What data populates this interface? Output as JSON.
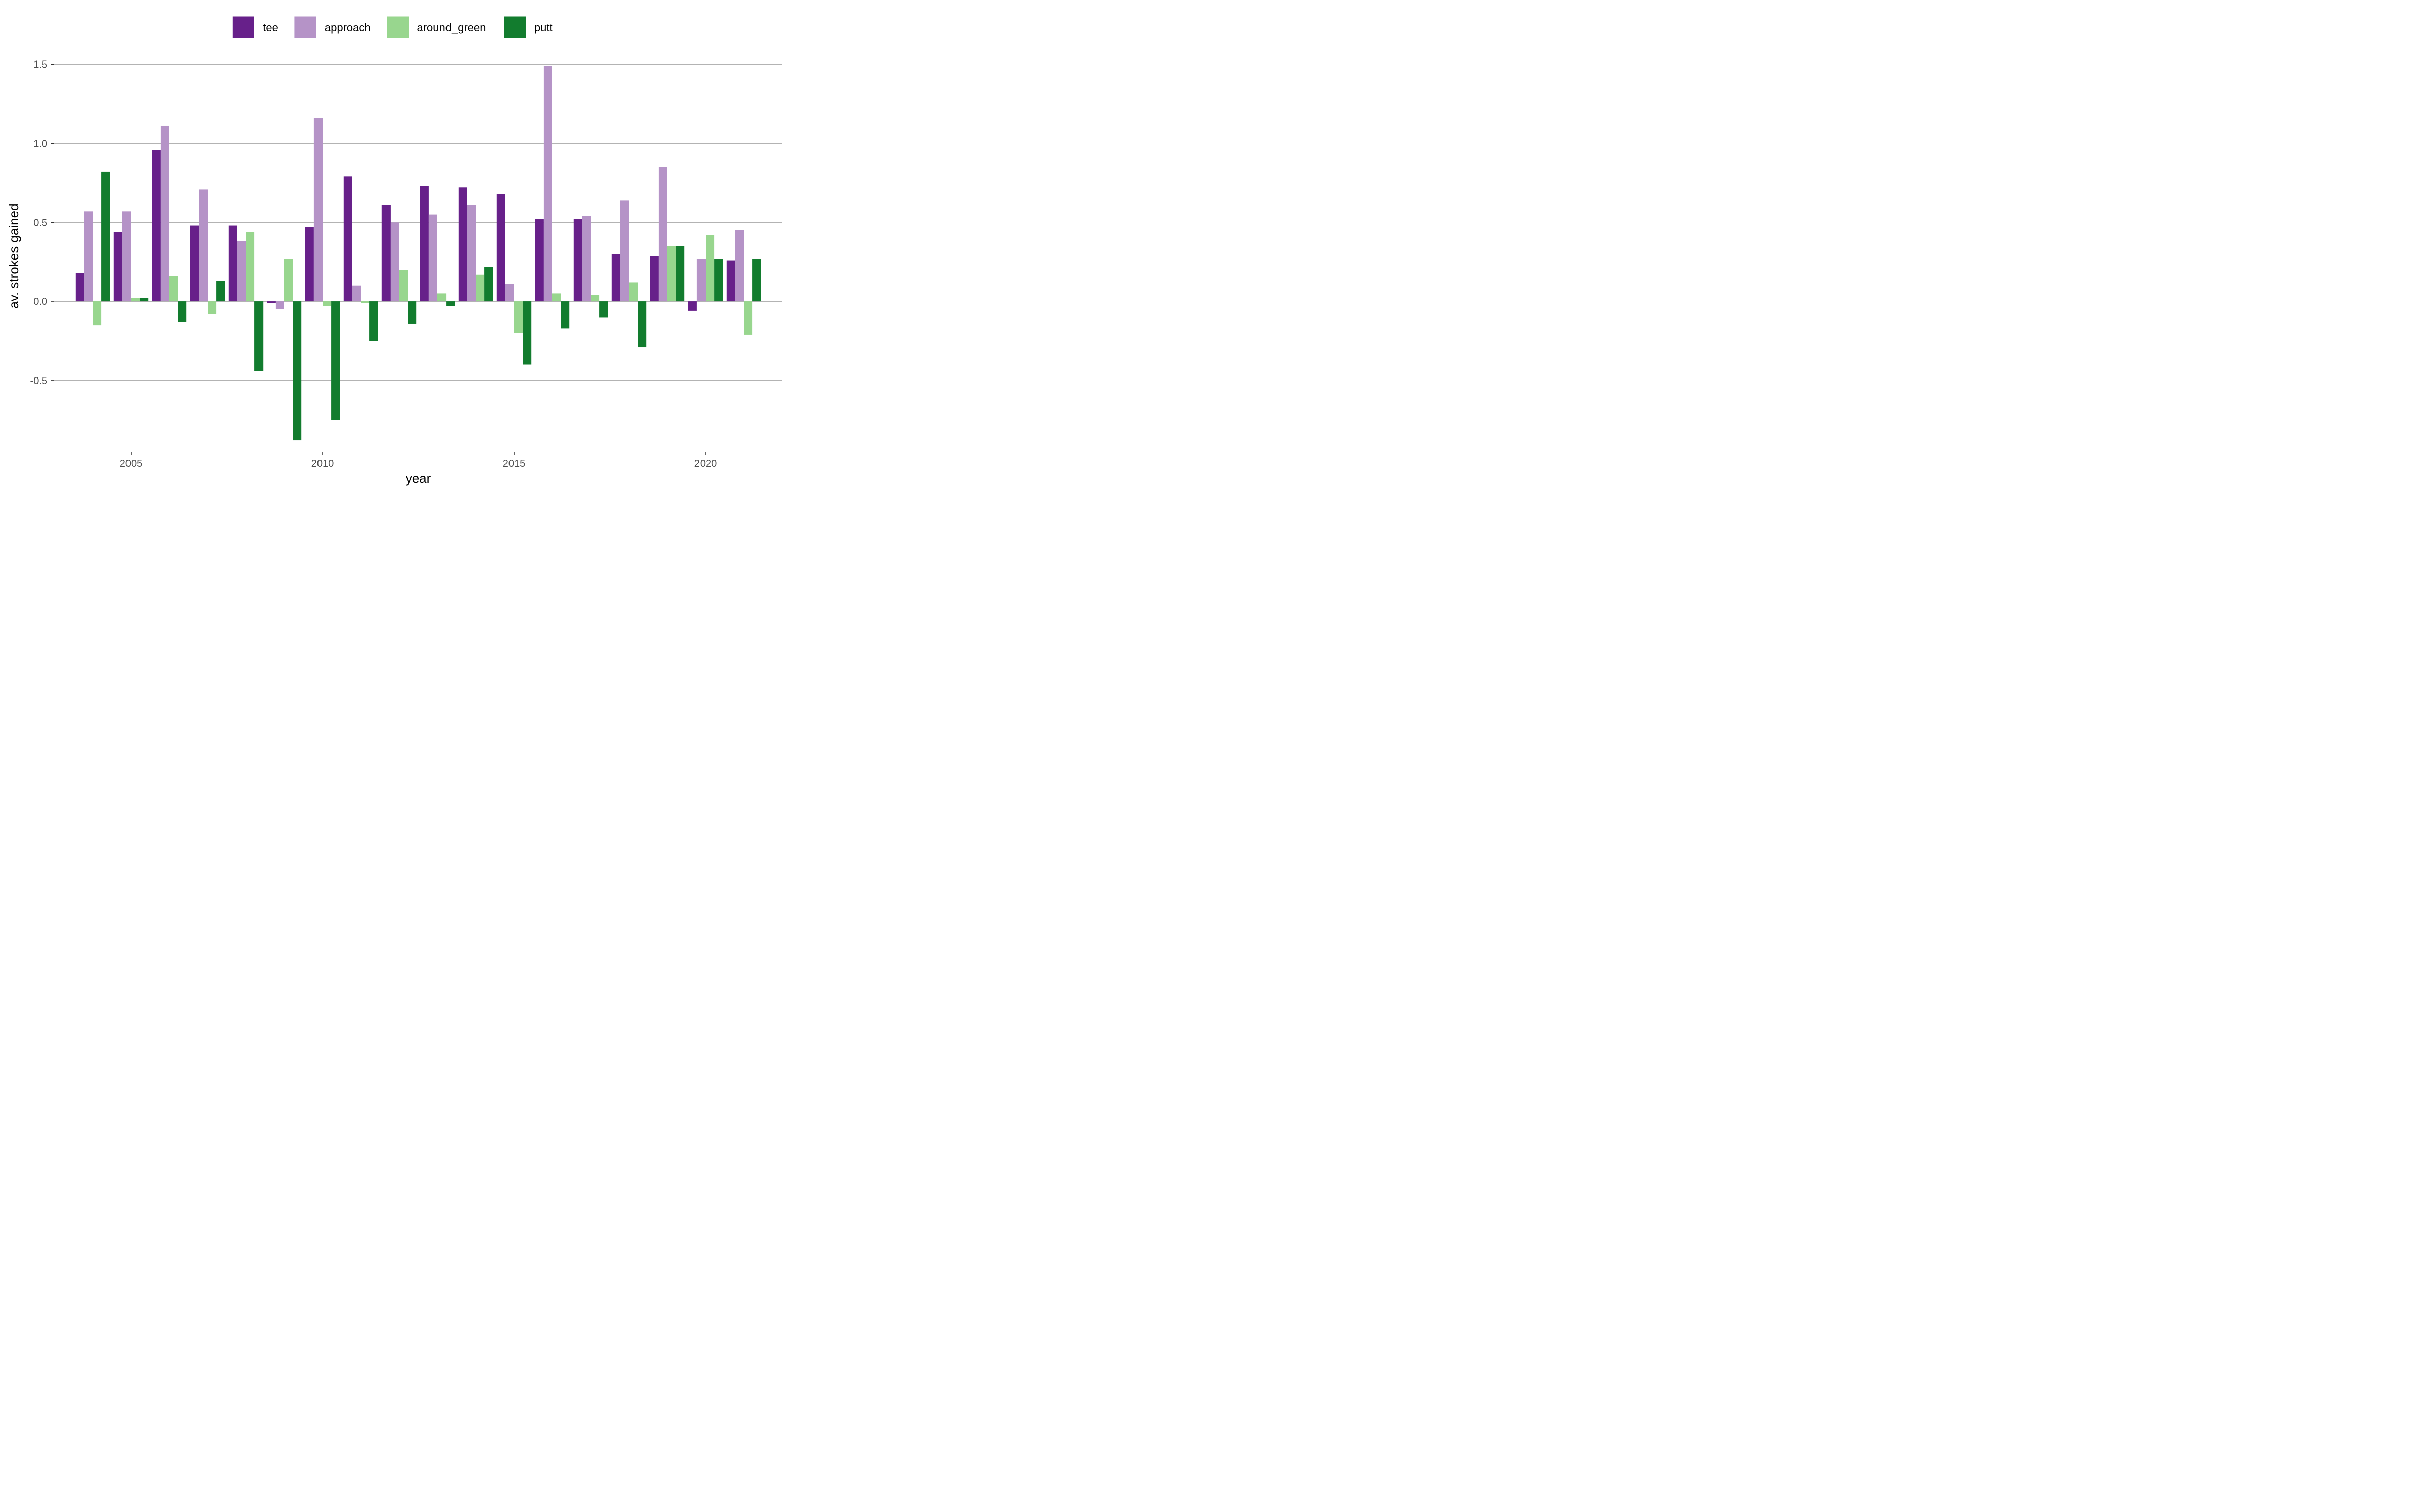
{
  "chart_data": {
    "type": "bar",
    "orientation": "vertical",
    "grouping": "dodged",
    "xlabel": "year",
    "ylabel": "av. strokes gained",
    "xlim": [
      2003,
      2022
    ],
    "ylim": [
      -0.95,
      1.55
    ],
    "x_ticks": [
      2005,
      2010,
      2015,
      2020
    ],
    "y_ticks": [
      -0.5,
      0.0,
      0.5,
      1.0,
      1.5
    ],
    "y_tick_labels": [
      "-0.5",
      "0.0",
      "0.5",
      "1.0",
      "1.5"
    ],
    "grid": {
      "major_y": true,
      "major_x": false
    },
    "legend": {
      "position": "top"
    },
    "x": [
      2004,
      2005,
      2006,
      2007,
      2008,
      2009,
      2010,
      2011,
      2012,
      2013,
      2014,
      2015,
      2016,
      2017,
      2018,
      2019,
      2020,
      2021
    ],
    "series": [
      {
        "name": "tee",
        "color": "#67208a",
        "values": [
          0.18,
          0.44,
          0.96,
          0.48,
          0.48,
          -0.01,
          0.47,
          0.79,
          0.61,
          0.73,
          0.72,
          0.68,
          0.52,
          0.52,
          0.3,
          0.29,
          -0.06,
          0.26
        ]
      },
      {
        "name": "approach",
        "color": "#b593c7",
        "values": [
          0.57,
          0.57,
          1.11,
          0.71,
          0.38,
          -0.05,
          1.16,
          0.1,
          0.5,
          0.55,
          0.61,
          0.11,
          1.49,
          0.54,
          0.64,
          0.85,
          0.27,
          0.45
        ]
      },
      {
        "name": "around_green",
        "color": "#98d68e",
        "values": [
          -0.15,
          0.02,
          0.16,
          -0.08,
          0.44,
          0.27,
          -0.03,
          -0.01,
          0.2,
          0.05,
          0.17,
          -0.2,
          0.05,
          0.04,
          0.12,
          0.35,
          0.42,
          -0.21
        ]
      },
      {
        "name": "putt",
        "color": "#127c2e",
        "values": [
          0.82,
          0.02,
          -0.13,
          0.13,
          -0.44,
          -0.88,
          -0.75,
          -0.25,
          -0.14,
          -0.03,
          0.22,
          -0.4,
          -0.17,
          -0.1,
          -0.29,
          0.35,
          0.27,
          0.27
        ]
      }
    ]
  }
}
